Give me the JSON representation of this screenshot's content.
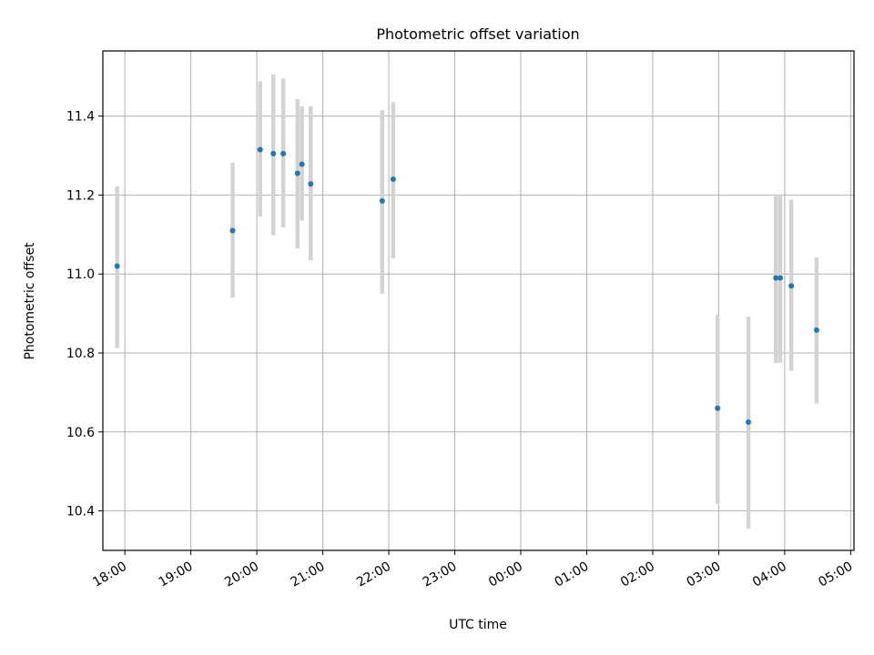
{
  "chart_data": {
    "type": "scatter",
    "title": "Photometric offset variation",
    "xlabel": "UTC time",
    "ylabel": "Photometric offset",
    "grid": true,
    "xlim": [
      "17:40",
      "05:03"
    ],
    "ylim": [
      10.3,
      11.565
    ],
    "x_ticks": [
      "18:00",
      "19:00",
      "20:00",
      "21:00",
      "22:00",
      "23:00",
      "00:00",
      "01:00",
      "02:00",
      "03:00",
      "04:00",
      "05:00"
    ],
    "y_ticks": [
      "10.4",
      "10.6",
      "10.8",
      "11.0",
      "11.2",
      "11.4"
    ],
    "colors": {
      "points": "#1f77b4",
      "error_bars": "#d3d3d3",
      "grid": "#b0b0b0"
    },
    "series": [
      {
        "x": [
          "17:53",
          "19:38",
          "20:03",
          "20:15",
          "20:24",
          "20:37",
          "20:41",
          "20:49",
          "21:54",
          "22:04",
          "02:59",
          "03:27",
          "03:52",
          "03:56",
          "04:06",
          "04:29"
        ],
        "y": [
          11.02,
          11.11,
          11.315,
          11.305,
          11.305,
          11.255,
          11.278,
          11.228,
          11.185,
          11.24,
          10.66,
          10.625,
          10.99,
          10.99,
          10.97,
          10.858
        ],
        "yerr_low": [
          10.812,
          10.94,
          11.145,
          11.098,
          11.118,
          11.065,
          11.135,
          11.035,
          10.95,
          11.04,
          10.418,
          10.355,
          10.775,
          10.775,
          10.755,
          10.672
        ],
        "yerr_high": [
          11.222,
          11.282,
          11.488,
          11.505,
          11.495,
          11.443,
          11.425,
          11.425,
          11.415,
          11.435,
          10.897,
          10.892,
          11.202,
          11.202,
          11.188,
          11.042
        ]
      }
    ]
  }
}
